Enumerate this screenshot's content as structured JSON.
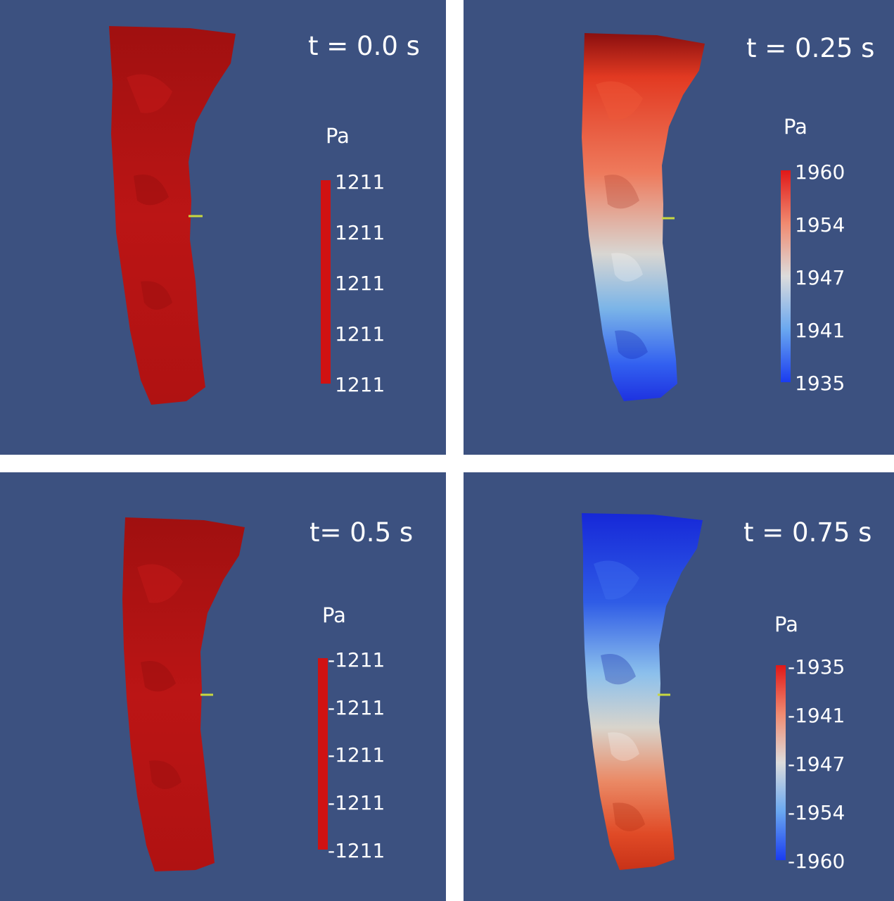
{
  "colors": {
    "background": "#3c5180",
    "uniform_red": "#b81414",
    "high_red": "#e01818",
    "mid_white": "#dcdcdc",
    "low_blue": "#1a3cf0",
    "probe_marker": "#c8d840"
  },
  "panels": [
    {
      "time": "t = 0.0 s",
      "unit": "Pa",
      "ticks": [
        "1211",
        "1211",
        "1211",
        "1211",
        "1211"
      ],
      "colorbar": "uniform-red",
      "vessel_coloring": "uniform-red"
    },
    {
      "time": "t = 0.25 s",
      "unit": "Pa",
      "ticks": [
        "1960",
        "1954",
        "1947",
        "1941",
        "1935"
      ],
      "colorbar": "red-to-blue",
      "vessel_coloring": "red-top-blue-bottom"
    },
    {
      "time": "t= 0.5 s",
      "unit": "Pa",
      "ticks": [
        "-1211",
        "-1211",
        "-1211",
        "-1211",
        "-1211"
      ],
      "colorbar": "uniform-red",
      "vessel_coloring": "uniform-red"
    },
    {
      "time": "t = 0.75 s",
      "unit": "Pa",
      "ticks": [
        "-1935",
        "-1941",
        "-1947",
        "-1954",
        "-1960"
      ],
      "colorbar": "red-to-blue",
      "vessel_coloring": "blue-top-red-bottom"
    }
  ]
}
